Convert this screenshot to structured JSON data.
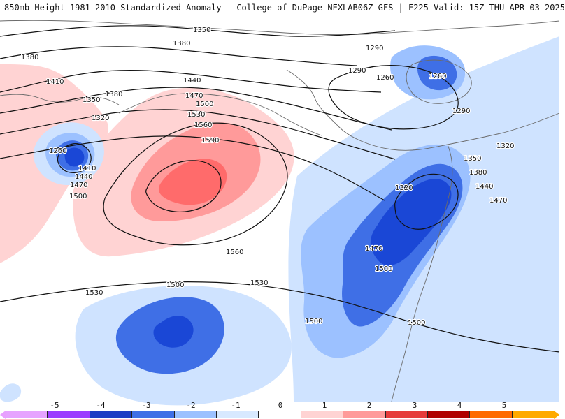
{
  "header": {
    "left": "850mb Height 1981-2010 Standardized Anomaly | College of DuPage NEXLAB",
    "right": "06Z GFS | F225 Valid: 15Z THU APR 03 2025"
  },
  "map": {
    "contours": [
      {
        "label": "1350"
      },
      {
        "label": "1380"
      },
      {
        "label": "1410"
      },
      {
        "label": "1440"
      },
      {
        "label": "1470"
      },
      {
        "label": "1500"
      },
      {
        "label": "1530"
      },
      {
        "label": "1560"
      },
      {
        "label": "1590"
      },
      {
        "label": "1260"
      },
      {
        "label": "1290"
      },
      {
        "label": "1320"
      }
    ],
    "colors": {
      "neg_strong": "#1a47d6",
      "neg_med": "#3f6fe6",
      "neg_light": "#9cc1ff",
      "neg_pale": "#cfe3ff",
      "pos_pale": "#ffd3d3",
      "pos_light": "#ff9a9a",
      "pos_med": "#ff6b6b",
      "coast": "#6b6b6b"
    }
  },
  "legend": {
    "labels": [
      "-5",
      "-4",
      "-3",
      "-2",
      "-1",
      "0",
      "1",
      "2",
      "3",
      "4",
      "5"
    ],
    "swatches": [
      {
        "color": "#e6a3ff"
      },
      {
        "color": "#9b3cff"
      },
      {
        "color": "#1c3cc4"
      },
      {
        "color": "#3f6fe6"
      },
      {
        "color": "#9cc1ff"
      },
      {
        "color": "#d8e9ff"
      },
      {
        "color": "#ffffff"
      },
      {
        "color": "#ffd3d3"
      },
      {
        "color": "#ff9a9a"
      },
      {
        "color": "#e63b3b"
      },
      {
        "color": "#b00000"
      },
      {
        "color": "#ff6a00"
      },
      {
        "color": "#ffaa00"
      }
    ]
  }
}
